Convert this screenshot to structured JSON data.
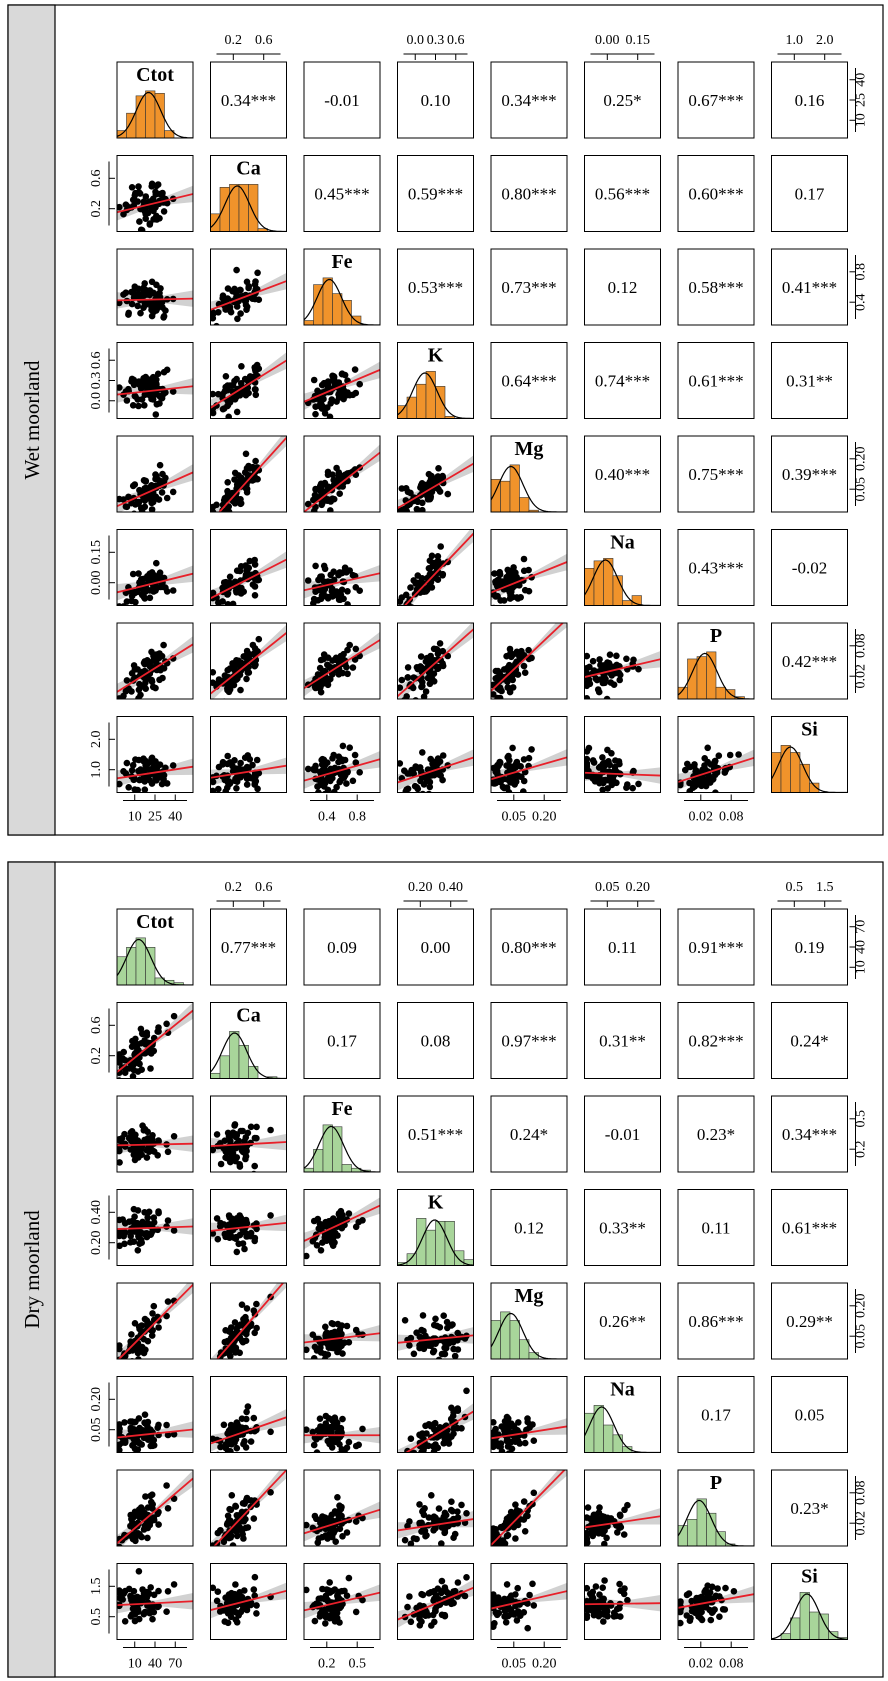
{
  "chart_data": [
    {
      "type": "scatter",
      "panel_label": "Wet moorland",
      "variables": [
        "Ctot",
        "Ca",
        "Fe",
        "K",
        "Mg",
        "Na",
        "P",
        "Si"
      ],
      "hist_color": "#f0932b",
      "correlations": [
        [
          "",
          "0.34***",
          "-0.01",
          "0.10",
          "0.34***",
          "0.25*",
          "0.67***",
          "0.16"
        ],
        [
          "",
          "",
          "0.45***",
          "0.59***",
          "0.80***",
          "0.56***",
          "0.60***",
          "0.17"
        ],
        [
          "",
          "",
          "",
          "0.53***",
          "0.73***",
          "0.12",
          "0.58***",
          "0.41***"
        ],
        [
          "",
          "",
          "",
          "",
          "0.64***",
          "0.74***",
          "0.61***",
          "0.31**"
        ],
        [
          "",
          "",
          "",
          "",
          "",
          "0.40***",
          "0.75***",
          "0.39***"
        ],
        [
          "",
          "",
          "",
          "",
          "",
          "",
          "0.43***",
          "-0.02"
        ],
        [
          "",
          "",
          "",
          "",
          "",
          "",
          "",
          "0.42***"
        ],
        [
          "",
          "",
          "",
          "",
          "",
          "",
          "",
          ""
        ]
      ],
      "axis_ticks": [
        [
          "10",
          "25",
          "40"
        ],
        [
          "0.2",
          "0.6"
        ],
        [
          "0.4",
          "0.8"
        ],
        [
          "0.0",
          "0.3",
          "0.6"
        ],
        [
          "0.05",
          "0.20"
        ],
        [
          "0.00",
          "0.15"
        ],
        [
          "0.02",
          "0.08"
        ],
        [
          "1.0",
          "2.0"
        ]
      ],
      "ranges": [
        [
          5,
          46
        ],
        [
          0,
          0.85
        ],
        [
          0.2,
          1.1
        ],
        [
          -0.05,
          0.7
        ],
        [
          0.02,
          0.25
        ],
        [
          -0.01,
          0.19
        ],
        [
          0.005,
          0.09
        ],
        [
          0.7,
          2.3
        ]
      ],
      "means": [
        22,
        0.3,
        0.5,
        0.22,
        0.08,
        0.045,
        0.035,
        1.1
      ],
      "slopes": [
        [
          0,
          0,
          0,
          0,
          0,
          0,
          0,
          0
        ],
        [
          0.005,
          0,
          0,
          0,
          0,
          0,
          0,
          0
        ],
        [
          0.0005,
          0.4,
          0,
          0,
          0,
          0,
          0,
          0
        ],
        [
          0.002,
          0.55,
          0.35,
          0,
          0,
          0,
          0,
          0
        ],
        [
          0.0025,
          0.3,
          0.2,
          0.18,
          0,
          0,
          0,
          0
        ],
        [
          0.0012,
          0.12,
          0.05,
          0.28,
          0.35,
          0,
          0,
          0
        ],
        [
          0.0013,
          0.08,
          0.06,
          0.1,
          0.35,
          0.1,
          0,
          0
        ],
        [
          0.006,
          0.3,
          0.5,
          0.7,
          2.0,
          -0.3,
          6.0,
          0
        ]
      ]
    },
    {
      "type": "scatter",
      "panel_label": "Dry moorland",
      "variables": [
        "Ctot",
        "Ca",
        "Fe",
        "K",
        "Mg",
        "Na",
        "P",
        "Si"
      ],
      "hist_color": "#a8d59a",
      "correlations": [
        [
          "",
          "0.77***",
          "0.09",
          "0.00",
          "0.80***",
          "0.11",
          "0.91***",
          "0.19"
        ],
        [
          "",
          "",
          "0.17",
          "0.08",
          "0.97***",
          "0.31**",
          "0.82***",
          "0.24*"
        ],
        [
          "",
          "",
          "",
          "0.51***",
          "0.24*",
          "-0.01",
          "0.23*",
          "0.34***"
        ],
        [
          "",
          "",
          "",
          "",
          "0.12",
          "0.33**",
          "0.11",
          "0.61***"
        ],
        [
          "",
          "",
          "",
          "",
          "",
          "0.26**",
          "0.86***",
          "0.29**"
        ],
        [
          "",
          "",
          "",
          "",
          "",
          "",
          "0.17",
          "0.05"
        ],
        [
          "",
          "",
          "",
          "",
          "",
          "",
          "",
          "0.23*"
        ],
        [
          "",
          "",
          "",
          "",
          "",
          "",
          "",
          ""
        ]
      ],
      "axis_ticks": [
        [
          "10",
          "40",
          "70"
        ],
        [
          "0.2",
          "0.6"
        ],
        [
          "0.2",
          "0.5"
        ],
        [
          "0.20",
          "0.40"
        ],
        [
          "0.05",
          "0.20"
        ],
        [
          "0.05",
          "0.20"
        ],
        [
          "0.02",
          "0.08"
        ],
        [
          "0.5",
          "1.5"
        ]
      ],
      "ranges": [
        [
          3,
          80
        ],
        [
          0,
          0.95
        ],
        [
          0.1,
          0.8
        ],
        [
          0.1,
          0.55
        ],
        [
          0.02,
          0.25
        ],
        [
          0.01,
          0.23
        ],
        [
          0.005,
          0.095
        ],
        [
          0.3,
          1.8
        ]
      ],
      "means": [
        25,
        0.3,
        0.35,
        0.32,
        0.08,
        0.06,
        0.03,
        1.0
      ],
      "slopes": [
        [
          0,
          0,
          0,
          0,
          0,
          0,
          0,
          0
        ],
        [
          0.01,
          0,
          0,
          0,
          0,
          0,
          0,
          0
        ],
        [
          0.0002,
          0.04,
          0,
          0,
          0,
          0,
          0,
          0
        ],
        [
          0.0002,
          0.05,
          0.3,
          0,
          0,
          0,
          0,
          0
        ],
        [
          0.003,
          0.28,
          0.04,
          0.05,
          0,
          0,
          0,
          0
        ],
        [
          0.0003,
          0.08,
          0.0,
          0.3,
          0.15,
          0,
          0,
          0
        ],
        [
          0.001,
          0.1,
          0.04,
          0.03,
          0.4,
          0.06,
          0,
          0
        ],
        [
          0.001,
          0.4,
          0.5,
          1.4,
          1.5,
          0.1,
          3.0,
          0
        ]
      ]
    }
  ]
}
